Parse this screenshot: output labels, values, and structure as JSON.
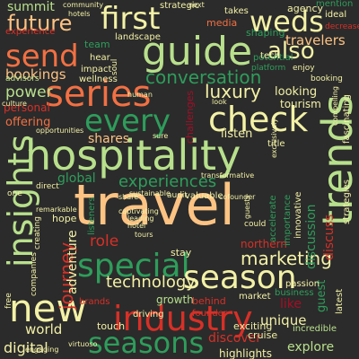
{
  "palette": {
    "background": "#2b2b2b",
    "green": "#2e9d5b",
    "light_green": "#b8e08c",
    "pale_yellow": "#f3f1a6",
    "peach": "#fdc383",
    "orange": "#f27043",
    "red": "#d73027",
    "dark_red": "#a50e26"
  },
  "words": [
    {
      "text": "travel",
      "color": "#fdc383"
    },
    {
      "text": "hospitality",
      "color": "#b8e08c"
    },
    {
      "text": "industry",
      "color": "#d73027"
    },
    {
      "text": "trends",
      "color": "#b8e08c"
    },
    {
      "text": "insights",
      "color": "#b8e08c"
    },
    {
      "text": "guide",
      "color": "#b8e08c"
    },
    {
      "text": "special",
      "color": "#2e9d5b"
    },
    {
      "text": "season",
      "color": "#f3f1a6"
    },
    {
      "text": "seasons",
      "color": "#2e9d5b"
    },
    {
      "text": "series",
      "color": "#f27043"
    },
    {
      "text": "check",
      "color": "#f3f1a6"
    },
    {
      "text": "every",
      "color": "#2e9d5b"
    },
    {
      "text": "new",
      "color": "#f3f1a6"
    },
    {
      "text": "first",
      "color": "#f3f1a6"
    },
    {
      "text": "weds",
      "color": "#f3f1a6"
    },
    {
      "text": "send",
      "color": "#f27043"
    },
    {
      "text": "also",
      "color": "#f3f1a6"
    },
    {
      "text": "future",
      "color": "#fdc383"
    },
    {
      "text": "conversation",
      "color": "#2e9d5b"
    },
    {
      "text": "luxury",
      "color": "#f3f1a6"
    },
    {
      "text": "experiences",
      "color": "#2e9d5b"
    },
    {
      "text": "marketing",
      "color": "#f3f1a6"
    },
    {
      "text": "journey",
      "color": "#d73027"
    },
    {
      "text": "technology",
      "color": "#f3f1a6"
    },
    {
      "text": "summit",
      "color": "#b8e08c"
    },
    {
      "text": "bookings",
      "color": "#fdc383"
    },
    {
      "text": "power",
      "color": "#b8e08c"
    },
    {
      "text": "shares",
      "color": "#fdc383"
    },
    {
      "text": "travelers",
      "color": "#fdc383"
    },
    {
      "text": "discussion",
      "color": "#2e9d5b"
    },
    {
      "text": "discuss",
      "color": "#d73027"
    },
    {
      "text": "adventure",
      "color": "#f3f1a6"
    },
    {
      "text": "digital",
      "color": "#f3f1a6"
    },
    {
      "text": "world",
      "color": "#f3f1a6"
    },
    {
      "text": "unique",
      "color": "#f3f1a6"
    },
    {
      "text": "explore",
      "color": "#b8e08c"
    },
    {
      "text": "discover",
      "color": "#d73027"
    },
    {
      "text": "role",
      "color": "#d73027"
    },
    {
      "text": "global",
      "color": "#2e9d5b"
    },
    {
      "text": "hope",
      "color": "#f3f1a6"
    },
    {
      "text": "stay",
      "color": "#f3f1a6"
    },
    {
      "text": "northern",
      "color": "#d73027"
    },
    {
      "text": "like",
      "color": "#a50e26"
    },
    {
      "text": "guest",
      "color": "#2e9d5b"
    },
    {
      "text": "growth",
      "color": "#b8e08c"
    },
    {
      "text": "behind",
      "color": "#d73027"
    },
    {
      "text": "highlights",
      "color": "#f3f1a6"
    },
    {
      "text": "cruise",
      "color": "#f3f1a6"
    },
    {
      "text": "exciting",
      "color": "#f3f1a6"
    },
    {
      "text": "incredible",
      "color": "#b8e08c"
    },
    {
      "text": "listen",
      "color": "#f3f1a6"
    },
    {
      "text": "looking",
      "color": "#f3f1a6"
    },
    {
      "text": "tourism",
      "color": "#f3f1a6"
    },
    {
      "text": "offering",
      "color": "#f27043"
    },
    {
      "text": "personal",
      "color": "#d73027"
    },
    {
      "text": "experience",
      "color": "#d73027"
    },
    {
      "text": "shaping",
      "color": "#2e9d5b"
    },
    {
      "text": "potential",
      "color": "#2e9d5b"
    },
    {
      "text": "agency",
      "color": "#f3f1a6"
    },
    {
      "text": "takes",
      "color": "#f3f1a6"
    },
    {
      "text": "media",
      "color": "#f27043"
    },
    {
      "text": "strategic",
      "color": "#f3f1a6"
    },
    {
      "text": "landscape",
      "color": "#f3f1a6"
    },
    {
      "text": "impact",
      "color": "#f3f1a6"
    },
    {
      "text": "wellness",
      "color": "#f3f1a6"
    },
    {
      "text": "advisors",
      "color": "#b8e08c"
    },
    {
      "text": "challenges",
      "color": "#a50e26"
    },
    {
      "text": "listeners",
      "color": "#2e9d5b"
    },
    {
      "text": "market",
      "color": "#f3f1a6"
    },
    {
      "text": "business",
      "color": "#2e9d5b"
    },
    {
      "text": "importance",
      "color": "#2e9d5b"
    },
    {
      "text": "passion",
      "color": "#f3f1a6"
    },
    {
      "text": "fascinating",
      "color": "#f3f1a6"
    },
    {
      "text": "strategies",
      "color": "#f3f1a6"
    },
    {
      "text": "latest",
      "color": "#f3f1a6"
    },
    {
      "text": "innovative",
      "color": "#f3f1a6"
    },
    {
      "text": "accelerate",
      "color": "#2e9d5b"
    },
    {
      "text": "companies",
      "color": "#f3f1a6"
    },
    {
      "text": "free",
      "color": "#f3f1a6"
    },
    {
      "text": "brands",
      "color": "#d73027"
    },
    {
      "text": "driving",
      "color": "#f3f1a6"
    },
    {
      "text": "founder",
      "color": "#d73027"
    },
    {
      "text": "touch",
      "color": "#f3f1a6"
    },
    {
      "text": "valuable",
      "color": "#f3f1a6"
    },
    {
      "text": "audit",
      "color": "#f3f1a6"
    },
    {
      "text": "title",
      "color": "#f3f1a6"
    },
    {
      "text": "could",
      "color": "#f3f1a6"
    },
    {
      "text": "hear",
      "color": "#f3f1a6"
    },
    {
      "text": "team",
      "color": "#2e9d5b"
    },
    {
      "text": "tech",
      "color": "#f3f1a6"
    },
    {
      "text": "mention",
      "color": "#2e9d5b"
    },
    {
      "text": "ideal",
      "color": "#f3f1a6"
    },
    {
      "text": "enjoy",
      "color": "#f3f1a6"
    },
    {
      "text": "booking",
      "color": "#f3f1a6"
    },
    {
      "text": "decrease",
      "color": "#d73027"
    },
    {
      "text": "platform",
      "color": "#2e9d5b"
    },
    {
      "text": "soul",
      "color": "#f3f1a6"
    },
    {
      "text": "community",
      "color": "#f3f1a6"
    },
    {
      "text": "hotels",
      "color": "#f3f1a6"
    },
    {
      "text": "next",
      "color": "#f3f1a6"
    },
    {
      "text": "human",
      "color": "#f3f1a6"
    },
    {
      "text": "culture",
      "color": "#f3f1a6"
    },
    {
      "text": "opportunities",
      "color": "#f3f1a6"
    },
    {
      "text": "direct",
      "color": "#f3f1a6"
    },
    {
      "text": "one",
      "color": "#f3f1a6"
    },
    {
      "text": "remarkable",
      "color": "#f3f1a6"
    },
    {
      "text": "creating",
      "color": "#f3f1a6"
    },
    {
      "text": "captivating",
      "color": "#f3f1a6"
    },
    {
      "text": "leading",
      "color": "#f3f1a6"
    },
    {
      "text": "hotel",
      "color": "#f3f1a6"
    },
    {
      "text": "tours",
      "color": "#f3f1a6"
    },
    {
      "text": "sustainable",
      "color": "#f3f1a6"
    },
    {
      "text": "cofounder",
      "color": "#f3f1a6"
    },
    {
      "text": "transformative",
      "color": "#f3f1a6"
    },
    {
      "text": "exclusively",
      "color": "#f3f1a6"
    },
    {
      "text": "compelling",
      "color": "#f3f1a6"
    },
    {
      "text": "guests",
      "color": "#f3f1a6"
    },
    {
      "text": "virtuoso",
      "color": "#f3f1a6"
    },
    {
      "text": "engaging",
      "color": "#f3f1a6"
    },
    {
      "text": "share",
      "color": "#f3f1a6"
    },
    {
      "text": "look",
      "color": "#f3f1a6"
    },
    {
      "text": "sure",
      "color": "#f3f1a6"
    }
  ]
}
